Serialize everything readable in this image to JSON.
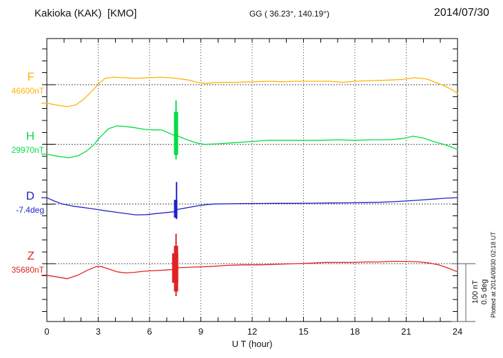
{
  "header": {
    "station": "Kakioka (KAK)  [KMO]",
    "coords": "GG ( 36.23°, 140.19°)",
    "date": "2014/07/30"
  },
  "scalebar": {
    "line1": "100 nT",
    "line2": "0.5 deg"
  },
  "footer": {
    "plotted_note": "Plotted at 2014/08/30 02:18 UT"
  },
  "chart_data": {
    "type": "line",
    "title": "Kakioka (KAK) [KMO] magnetogram 2014/07/30",
    "xlabel": "U T (hour)",
    "x_range": [
      0,
      24
    ],
    "x_ticks": [
      0,
      3,
      6,
      9,
      12,
      15,
      18,
      21,
      24
    ],
    "grid": "dotted vertical lines every 3 hours; dotted horizontal baseline per channel",
    "legend_position": "left of each trace",
    "scale": {
      "nT_per_division": 100,
      "deg_per_division": 0.5
    },
    "series": [
      {
        "name": "F",
        "value_label": "46600nT",
        "ref": 46600,
        "unit": "nT",
        "color": "#FFB300",
        "points": [
          [
            0,
            46568
          ],
          [
            0.7,
            46564
          ],
          [
            1.2,
            46562
          ],
          [
            1.7,
            46565
          ],
          [
            2.2,
            46576
          ],
          [
            2.7,
            46591
          ],
          [
            3.0,
            46601
          ],
          [
            3.4,
            46611
          ],
          [
            3.9,
            46613
          ],
          [
            4.5,
            46612
          ],
          [
            5.2,
            46611
          ],
          [
            6.0,
            46612
          ],
          [
            6.6,
            46613
          ],
          [
            7.2,
            46612
          ],
          [
            7.8,
            46610
          ],
          [
            8.3,
            46608
          ],
          [
            8.8,
            46604
          ],
          [
            9.3,
            46602
          ],
          [
            10,
            46604
          ],
          [
            11,
            46604
          ],
          [
            12,
            46605
          ],
          [
            13,
            46606
          ],
          [
            13.8,
            46605
          ],
          [
            14.5,
            46606
          ],
          [
            15.5,
            46606
          ],
          [
            16.5,
            46606
          ],
          [
            17.3,
            46604
          ],
          [
            18,
            46606
          ],
          [
            19,
            46607
          ],
          [
            20,
            46608
          ],
          [
            20.8,
            46609
          ],
          [
            21.5,
            46612
          ],
          [
            22.2,
            46610
          ],
          [
            22.8,
            46603
          ],
          [
            23.3,
            46597
          ],
          [
            23.7,
            46591
          ],
          [
            24,
            46585
          ]
        ],
        "spikes": []
      },
      {
        "name": "H",
        "value_label": "29970nT",
        "ref": 29970,
        "unit": "nT",
        "color": "#00DD44",
        "points": [
          [
            0,
            29953
          ],
          [
            0.7,
            29949
          ],
          [
            1.3,
            29947
          ],
          [
            1.8,
            29950
          ],
          [
            2.3,
            29958
          ],
          [
            2.7,
            29968
          ],
          [
            3.1,
            29982
          ],
          [
            3.6,
            29997
          ],
          [
            4.1,
            30002
          ],
          [
            4.6,
            30001
          ],
          [
            5.1,
            29999
          ],
          [
            5.7,
            29996
          ],
          [
            6.2,
            29995
          ],
          [
            6.7,
            29995
          ],
          [
            7.1,
            29990
          ],
          [
            7.4,
            29986
          ],
          [
            7.7,
            29984
          ],
          [
            8.1,
            29979
          ],
          [
            8.7,
            29973
          ],
          [
            9.2,
            29970
          ],
          [
            10,
            29971
          ],
          [
            11,
            29973
          ],
          [
            12,
            29975
          ],
          [
            13,
            29977
          ],
          [
            14,
            29977
          ],
          [
            15,
            29977
          ],
          [
            16,
            29977
          ],
          [
            17,
            29978
          ],
          [
            18,
            29977
          ],
          [
            19,
            29978
          ],
          [
            20,
            29978
          ],
          [
            20.8,
            29980
          ],
          [
            21.4,
            29984
          ],
          [
            22,
            29981
          ],
          [
            22.6,
            29975
          ],
          [
            23.2,
            29970
          ],
          [
            23.6,
            29966
          ],
          [
            24,
            29961
          ]
        ],
        "spikes": [
          [
            7.55,
            30046,
            29944,
            2
          ],
          [
            7.55,
            30026,
            29952,
            6
          ]
        ]
      },
      {
        "name": "D",
        "value_label": "-7.4deg",
        "ref": -7.4,
        "unit": "deg",
        "color": "#2020CC",
        "points": [
          [
            0,
            -7.346
          ],
          [
            0.4,
            -7.372
          ],
          [
            0.9,
            -7.4
          ],
          [
            1.5,
            -7.418
          ],
          [
            2.1,
            -7.43
          ],
          [
            2.7,
            -7.442
          ],
          [
            3.3,
            -7.456
          ],
          [
            4.0,
            -7.47
          ],
          [
            4.6,
            -7.482
          ],
          [
            5.2,
            -7.494
          ],
          [
            5.8,
            -7.492
          ],
          [
            6.4,
            -7.483
          ],
          [
            7.0,
            -7.474
          ],
          [
            7.4,
            -7.468
          ],
          [
            7.6,
            -7.448
          ],
          [
            8.2,
            -7.432
          ],
          [
            8.8,
            -7.416
          ],
          [
            9.3,
            -7.406
          ],
          [
            9.8,
            -7.4
          ],
          [
            10.5,
            -7.398
          ],
          [
            11.5,
            -7.396
          ],
          [
            12.5,
            -7.395
          ],
          [
            13.5,
            -7.394
          ],
          [
            14.5,
            -7.394
          ],
          [
            15.5,
            -7.393
          ],
          [
            16.5,
            -7.391
          ],
          [
            17.5,
            -7.39
          ],
          [
            18.5,
            -7.388
          ],
          [
            19.5,
            -7.385
          ],
          [
            20.3,
            -7.38
          ],
          [
            21,
            -7.374
          ],
          [
            21.8,
            -7.366
          ],
          [
            22.6,
            -7.358
          ],
          [
            23.3,
            -7.35
          ],
          [
            24,
            -7.345
          ]
        ],
        "spikes": [
          [
            7.58,
            -7.21,
            -7.53,
            2
          ],
          [
            7.53,
            -7.364,
            -7.519,
            5
          ]
        ]
      },
      {
        "name": "Z",
        "value_label": "35680nT",
        "ref": 35680,
        "unit": "nT",
        "color": "#E02222",
        "points": [
          [
            0,
            35660
          ],
          [
            0.6,
            35657
          ],
          [
            1.2,
            35654
          ],
          [
            1.8,
            35660
          ],
          [
            2.4,
            35669
          ],
          [
            2.9,
            35675
          ],
          [
            3.2,
            35675
          ],
          [
            3.6,
            35671
          ],
          [
            4.1,
            35666
          ],
          [
            4.6,
            35664
          ],
          [
            5.1,
            35665
          ],
          [
            5.7,
            35667
          ],
          [
            6.3,
            35668
          ],
          [
            7.0,
            35669
          ],
          [
            7.4,
            35670
          ],
          [
            7.7,
            35673
          ],
          [
            8.5,
            35674
          ],
          [
            9.5,
            35675
          ],
          [
            10.5,
            35677
          ],
          [
            11.5,
            35678
          ],
          [
            12.5,
            35678
          ],
          [
            13.5,
            35679
          ],
          [
            14.5,
            35680
          ],
          [
            15.5,
            35681
          ],
          [
            16.2,
            35682
          ],
          [
            17,
            35682
          ],
          [
            17.8,
            35682
          ],
          [
            18.6,
            35683
          ],
          [
            19.4,
            35683
          ],
          [
            20.2,
            35684
          ],
          [
            21,
            35684
          ],
          [
            21.8,
            35683
          ],
          [
            22.4,
            35681
          ],
          [
            22.9,
            35678
          ],
          [
            23.4,
            35673
          ],
          [
            24,
            35666
          ]
        ],
        "spikes": [
          [
            7.55,
            35732,
            35624,
            2
          ],
          [
            7.55,
            35711,
            35632,
            6
          ],
          [
            7.5,
            35698,
            35647,
            9
          ]
        ]
      }
    ]
  }
}
